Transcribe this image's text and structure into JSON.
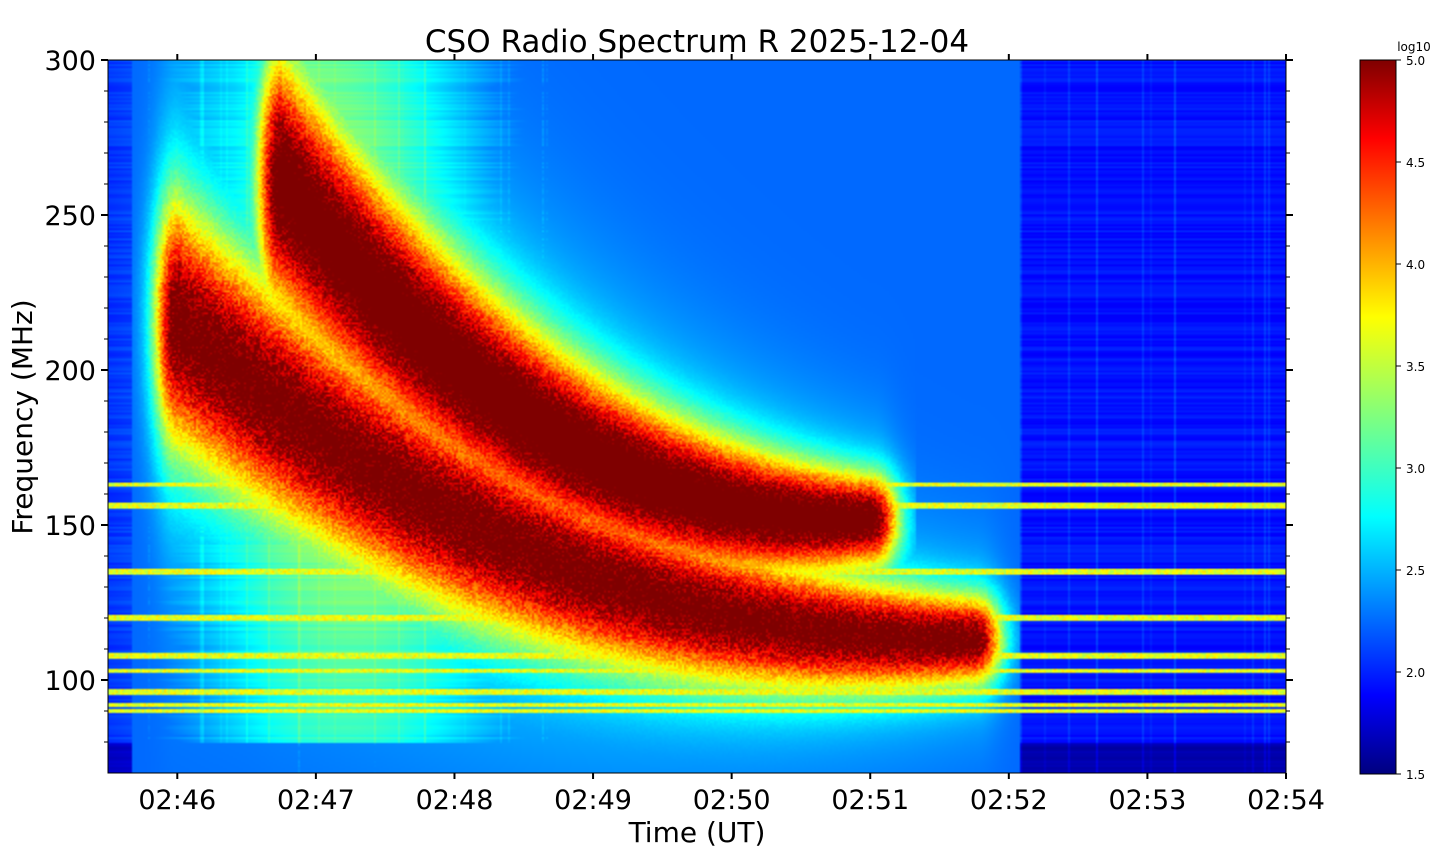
{
  "chart_data": {
    "type": "heatmap",
    "title": "CSO Radio Spectrum R 2025-12-04",
    "xlabel": "Time (UT)",
    "ylabel": "Frequency (MHz)",
    "x_ticks": [
      "02:46",
      "02:47",
      "02:48",
      "02:49",
      "02:50",
      "02:51",
      "02:52",
      "02:53",
      "02:54"
    ],
    "x_range": [
      "02:45:30",
      "02:54:00"
    ],
    "y_ticks": [
      100,
      150,
      200,
      250,
      300
    ],
    "ylim": [
      70,
      300
    ],
    "colorbar": {
      "label": "log10",
      "ticks": [
        "1.5",
        "2.0",
        "2.5",
        "3.0",
        "3.5",
        "4.0",
        "4.5",
        "5.0"
      ],
      "range": [
        1.5,
        5.0
      ],
      "colormap": "jet"
    },
    "features": [
      {
        "name": "upper burst lane",
        "start_time": "02:46:45",
        "end_time": "02:51:00",
        "start_freq_mhz": 262,
        "end_freq_mhz": 152,
        "peak_log10": 4.9
      },
      {
        "name": "lower burst lane",
        "start_time": "02:46:00",
        "end_time": "02:51:45",
        "start_freq_mhz": 215,
        "end_freq_mhz": 113,
        "peak_log10": 4.9
      },
      {
        "name": "interference bands",
        "freqs_mhz": [
          163,
          156,
          135,
          120,
          108,
          103,
          96,
          92,
          90
        ],
        "level_log10": 3.6
      }
    ]
  }
}
